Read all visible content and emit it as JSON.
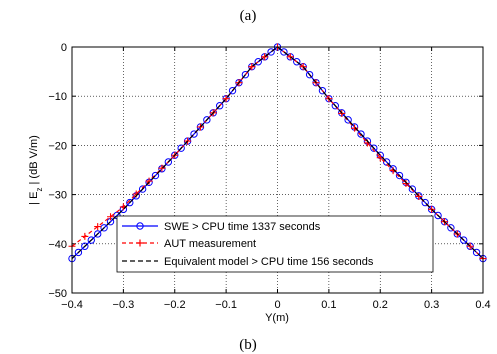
{
  "captions": {
    "top": "(a)",
    "bottom": "(b)"
  },
  "chart_data": {
    "type": "line",
    "title": "",
    "xlabel": "Y(m)",
    "ylabel_main": "| E",
    "ylabel_sub": "z",
    "ylabel_rest": " | (dB V/m)",
    "xlim": [
      -0.4,
      0.4
    ],
    "ylim": [
      -50,
      0
    ],
    "xticks": [
      -0.4,
      -0.3,
      -0.2,
      -0.1,
      0,
      0.1,
      0.2,
      0.3,
      0.4
    ],
    "xtick_labels": [
      "−0.4",
      "−0.3",
      "−0.2",
      "−0.1",
      "0",
      "0.1",
      "0.2",
      "0.3",
      "0.4"
    ],
    "yticks": [
      0,
      -10,
      -20,
      -30,
      -40,
      -50
    ],
    "ytick_labels": [
      "0",
      "−10",
      "−20",
      "−30",
      "−40",
      "−50"
    ],
    "grid": true,
    "legend_position": "bottom-center",
    "series": [
      {
        "name": "SWE > CPU time 1337 seconds",
        "color": "#0000ff",
        "style": "solid-circle",
        "x": [
          -0.4,
          -0.3,
          -0.2,
          -0.1,
          -0.05,
          0,
          0.05,
          0.1,
          0.2,
          0.3,
          0.4
        ],
        "y": [
          -43,
          -33,
          -22,
          -10.5,
          -4,
          0,
          -4,
          -10.5,
          -22,
          -33,
          -43
        ]
      },
      {
        "name": "AUT measurement",
        "color": "#ff0000",
        "style": "dash-plus",
        "x": [
          -0.4,
          -0.3,
          -0.2,
          -0.1,
          -0.05,
          0,
          0.05,
          0.1,
          0.2,
          0.3,
          0.4
        ],
        "y": [
          -40.5,
          -32.5,
          -22,
          -10.5,
          -4,
          0,
          -4,
          -10.5,
          -22.5,
          -33,
          -43
        ]
      },
      {
        "name": "Equivalent model > CPU time 156 seconds",
        "color": "#000000",
        "style": "dashed",
        "x": [
          -0.4,
          -0.3,
          -0.2,
          -0.1,
          -0.05,
          0,
          0.05,
          0.1,
          0.2,
          0.3,
          0.4
        ],
        "y": [
          -43,
          -33,
          -22,
          -10.5,
          -4,
          0,
          -4,
          -10.5,
          -22,
          -33,
          -43
        ]
      }
    ]
  }
}
